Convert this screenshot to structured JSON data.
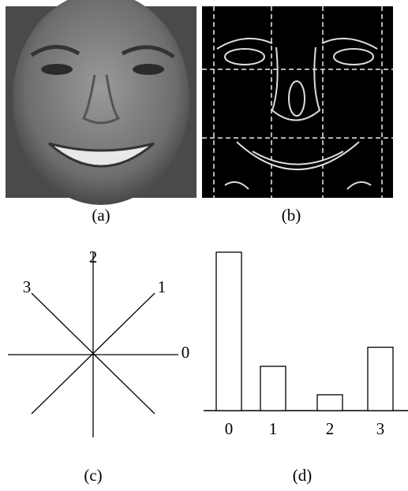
{
  "captions": [
    "(a)",
    "(b)",
    "(c)",
    "(d)"
  ],
  "direction_labels": [
    "0",
    "1",
    "2",
    "3"
  ],
  "chart_data": {
    "type": "bar",
    "categories": [
      "0",
      "1",
      "2",
      "3"
    ],
    "values": [
      10,
      2.8,
      1,
      4
    ],
    "color": "#ffffff"
  }
}
